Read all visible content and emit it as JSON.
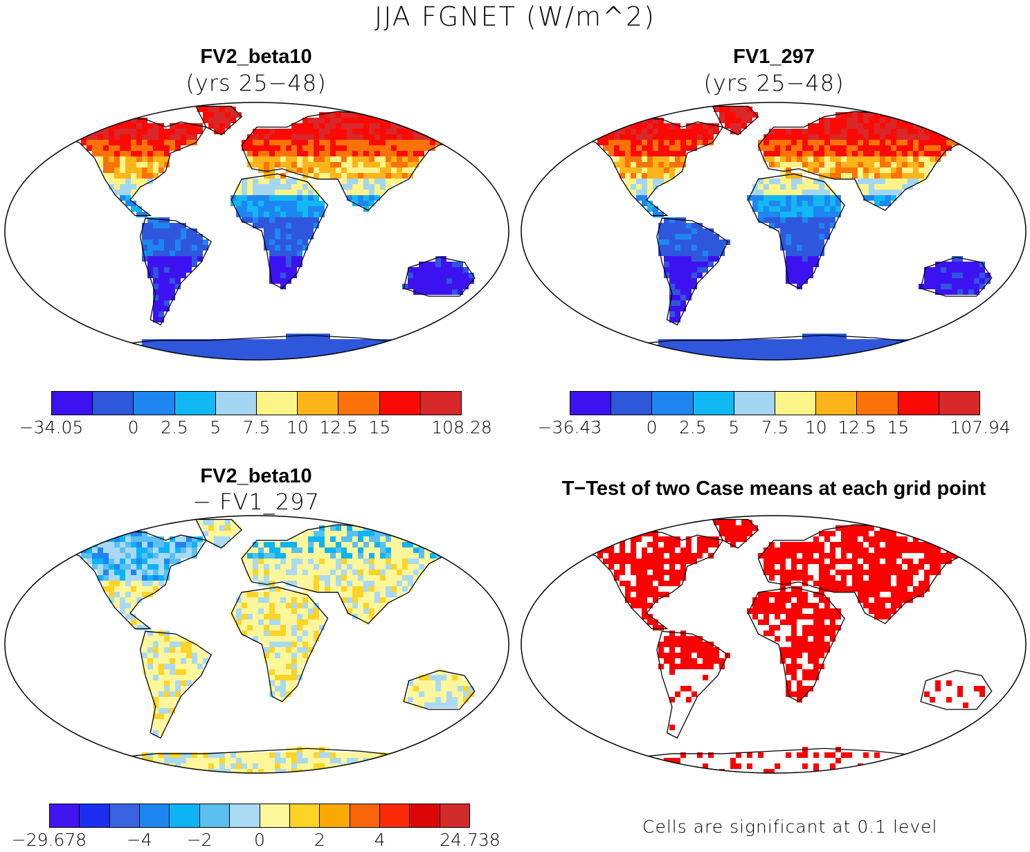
{
  "title": "JJA FGNET (W/m^2)",
  "panels": [
    {
      "title": "FV2_beta10",
      "subtitle": "(yrs 25-48)",
      "scheme": "abs",
      "colorbar": {
        "colors": [
          "#3d12f0",
          "#2f57dc",
          "#1e86f0",
          "#11b8f3",
          "#a4d6f1",
          "#fcf488",
          "#fcb41a",
          "#fb7308",
          "#fb0a05",
          "#d8282a"
        ],
        "ticks": [
          "-34.05",
          "0",
          "2.5",
          "5",
          "7.5",
          "10",
          "12.5",
          "15",
          "108.28"
        ],
        "tick_positions": [
          0,
          2,
          3,
          4,
          5,
          6,
          7,
          8,
          10
        ]
      }
    },
    {
      "title": "FV1_297",
      "subtitle": "(yrs 25-48)",
      "scheme": "abs",
      "colorbar": {
        "colors": [
          "#3d12f0",
          "#2f57dc",
          "#1e86f0",
          "#11b8f3",
          "#a4d6f1",
          "#fcf488",
          "#fcb41a",
          "#fb7308",
          "#fb0a05",
          "#d8282a"
        ],
        "ticks": [
          "-36.43",
          "0",
          "2.5",
          "5",
          "7.5",
          "10",
          "12.5",
          "15",
          "107.94"
        ],
        "tick_positions": [
          0,
          2,
          3,
          4,
          5,
          6,
          7,
          8,
          10
        ]
      }
    },
    {
      "title": "FV2_beta10",
      "subtitle": "- FV1_297",
      "scheme": "diff",
      "colorbar": {
        "colors": [
          "#4114f0",
          "#1b2ef0",
          "#3a63e2",
          "#1e86f0",
          "#0cb3f5",
          "#5bbff0",
          "#a9d9f3",
          "#fdf69a",
          "#fdd426",
          "#fba804",
          "#fb6509",
          "#fb2a06",
          "#dc0606",
          "#d22b2b"
        ],
        "ticks": [
          "-29.678",
          "-4",
          "-2",
          "0",
          "2",
          "4",
          "24.738"
        ],
        "tick_positions": [
          0,
          3,
          5,
          7,
          9,
          11,
          14
        ]
      }
    },
    {
      "title": "T-Test of two Case means at each grid point",
      "scheme": "ttest",
      "note": "Cells are significant at 0.1 level"
    }
  ]
}
